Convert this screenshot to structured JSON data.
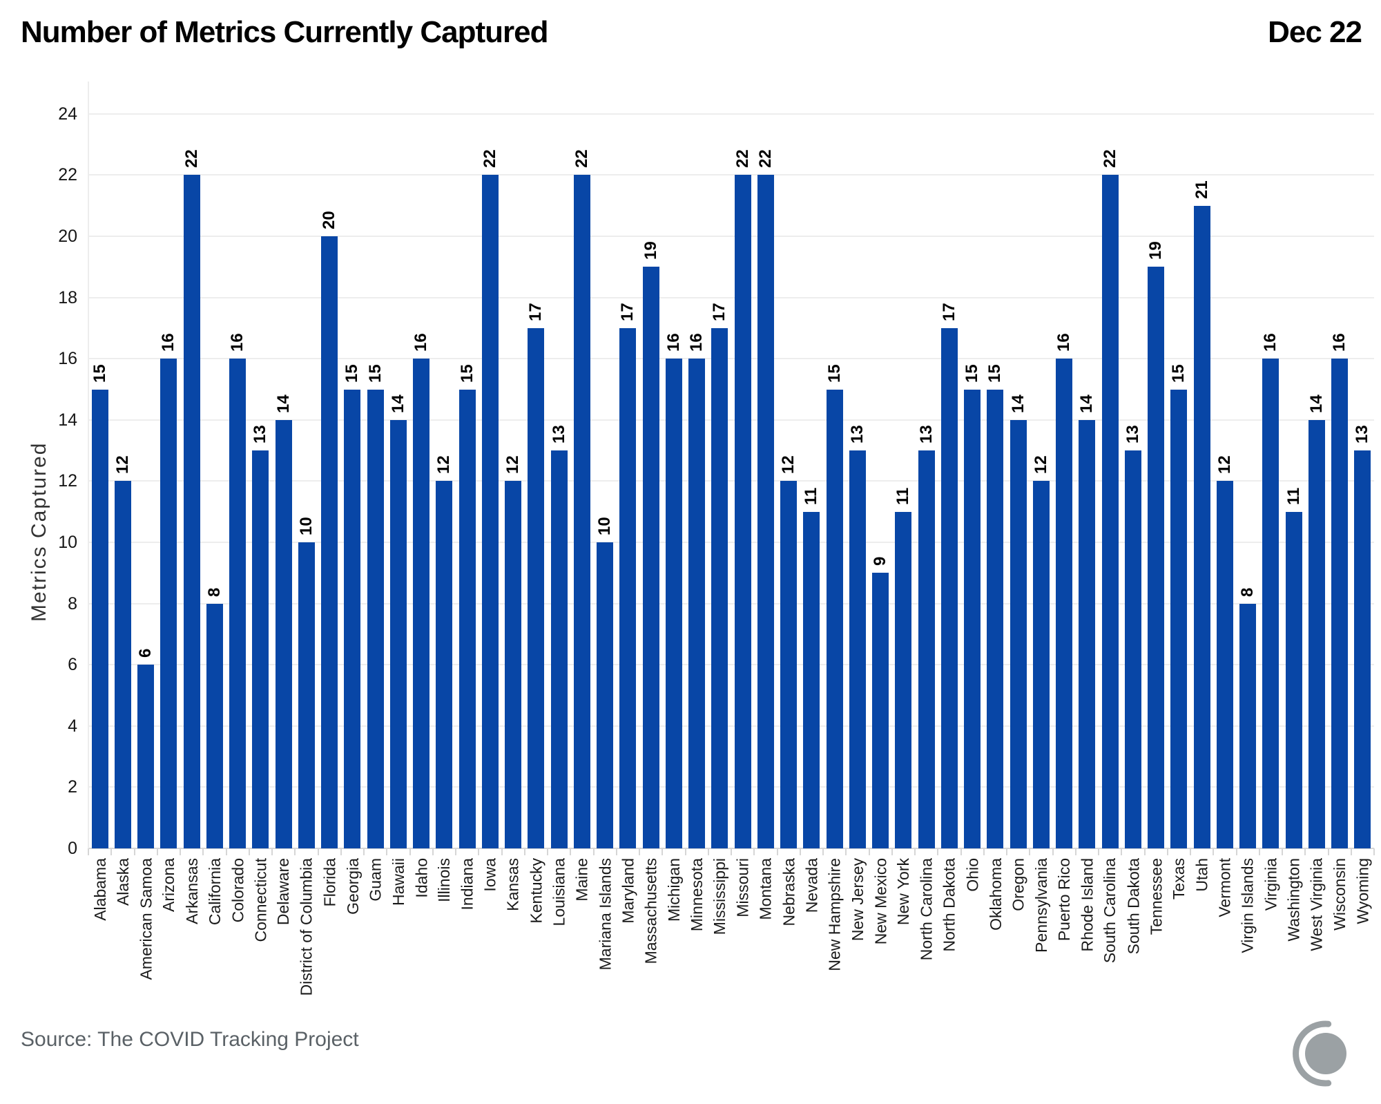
{
  "header": {
    "title": "Number of Metrics Currently Captured",
    "date_label": "Dec 22"
  },
  "footer": {
    "source": "Source: The COVID Tracking Project",
    "logo": "covid-tracking-project-logo"
  },
  "colors": {
    "bar": "#0846a6",
    "gridline": "#ededed",
    "baseline": "#d6d6d6",
    "tick_text": "#161616",
    "axis_title_text": "#333333",
    "source_text": "#5a6166",
    "logo_gray": "#9ba1a4"
  },
  "chart_data": {
    "type": "bar",
    "title": "Number of Metrics Currently Captured",
    "subtitle": "",
    "xlabel": "",
    "ylabel": "Metrics Captured",
    "ylim": [
      0,
      24
    ],
    "ytick_step": 2,
    "grid": true,
    "legend_position": "none",
    "bar_color": "#0846a6",
    "grid_color": "#ededed",
    "baseline_color": "#d6d6d6",
    "value_labels_rotated": true,
    "categories": [
      "Alabama",
      "Alaska",
      "American Samoa",
      "Arizona",
      "Arkansas",
      "California",
      "Colorado",
      "Connecticut",
      "Delaware",
      "District of Columbia",
      "Florida",
      "Georgia",
      "Guam",
      "Hawaii",
      "Idaho",
      "Illinois",
      "Indiana",
      "Iowa",
      "Kansas",
      "Kentucky",
      "Louisiana",
      "Maine",
      "Mariana Islands",
      "Maryland",
      "Massachusetts",
      "Michigan",
      "Minnesota",
      "Mississippi",
      "Missouri",
      "Montana",
      "Nebraska",
      "Nevada",
      "New Hampshire",
      "New Jersey",
      "New Mexico",
      "New York",
      "North Carolina",
      "North Dakota",
      "Ohio",
      "Oklahoma",
      "Oregon",
      "Pennsylvania",
      "Puerto Rico",
      "Rhode Island",
      "South Carolina",
      "South Dakota",
      "Tennessee",
      "Texas",
      "Utah",
      "Vermont",
      "Virgin Islands",
      "Virginia",
      "Washington",
      "West Virginia",
      "Wisconsin",
      "Wyoming"
    ],
    "values": [
      15,
      12,
      6,
      16,
      22,
      8,
      16,
      13,
      14,
      10,
      20,
      15,
      15,
      14,
      16,
      12,
      15,
      22,
      12,
      17,
      13,
      22,
      10,
      17,
      19,
      16,
      16,
      17,
      22,
      22,
      12,
      11,
      15,
      13,
      9,
      11,
      13,
      17,
      15,
      15,
      14,
      12,
      16,
      14,
      22,
      13,
      19,
      15,
      21,
      12,
      8,
      16,
      11,
      14,
      16,
      13
    ]
  }
}
